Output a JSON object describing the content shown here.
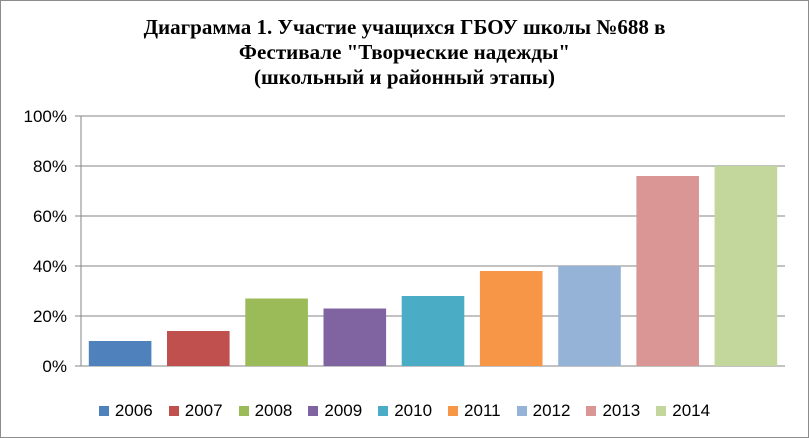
{
  "chart_data": {
    "type": "bar",
    "title_lines": [
      "Диаграмма 1. Участие учащихся ГБОУ школы №688 в",
      "Фестивале \"Творческие надежды\"",
      "(школьный и районный этапы)"
    ],
    "categories": [
      "2006",
      "2007",
      "2008",
      "2009",
      "2010",
      "2011",
      "2012",
      "2013",
      "2014"
    ],
    "values": [
      10,
      14,
      27,
      23,
      28,
      38,
      40,
      76,
      80
    ],
    "colors": [
      "#4F81BD",
      "#C0504D",
      "#9BBB59",
      "#8064A2",
      "#4BACC6",
      "#F79646",
      "#95B3D7",
      "#D99694",
      "#C3D69B"
    ],
    "ylim": [
      0,
      100
    ],
    "yticks": [
      "0%",
      "20%",
      "40%",
      "60%",
      "80%",
      "100%"
    ],
    "ytick_values": [
      0,
      20,
      40,
      60,
      80,
      100
    ],
    "grid": true,
    "legend_position": "bottom",
    "xlabel": "",
    "ylabel": ""
  }
}
